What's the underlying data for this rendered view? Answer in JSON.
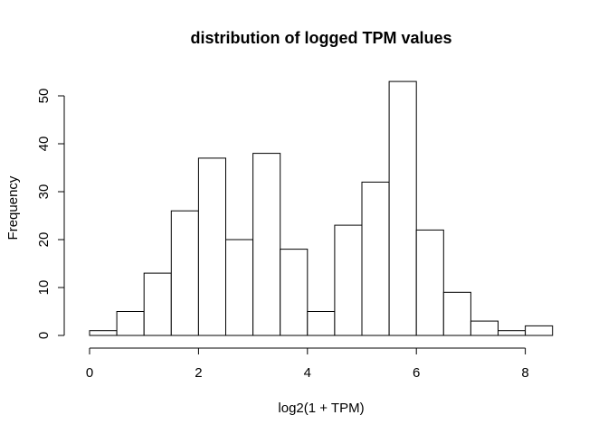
{
  "chart_data": {
    "type": "bar",
    "title": "distribution of logged TPM values",
    "xlabel": "log2(1 + TPM)",
    "ylabel": "Frequency",
    "bin_width": 0.5,
    "bins": [
      {
        "start": 0.0,
        "end": 0.5,
        "count": 1
      },
      {
        "start": 0.5,
        "end": 1.0,
        "count": 5
      },
      {
        "start": 1.0,
        "end": 1.5,
        "count": 13
      },
      {
        "start": 1.5,
        "end": 2.0,
        "count": 26
      },
      {
        "start": 2.0,
        "end": 2.5,
        "count": 37
      },
      {
        "start": 2.5,
        "end": 3.0,
        "count": 20
      },
      {
        "start": 3.0,
        "end": 3.5,
        "count": 38
      },
      {
        "start": 3.5,
        "end": 4.0,
        "count": 18
      },
      {
        "start": 4.0,
        "end": 4.5,
        "count": 5
      },
      {
        "start": 4.5,
        "end": 5.0,
        "count": 23
      },
      {
        "start": 5.0,
        "end": 5.5,
        "count": 32
      },
      {
        "start": 5.5,
        "end": 6.0,
        "count": 53
      },
      {
        "start": 6.0,
        "end": 6.5,
        "count": 22
      },
      {
        "start": 6.5,
        "end": 7.0,
        "count": 9
      },
      {
        "start": 7.0,
        "end": 7.5,
        "count": 3
      },
      {
        "start": 7.5,
        "end": 8.0,
        "count": 1
      },
      {
        "start": 8.0,
        "end": 8.5,
        "count": 2
      }
    ],
    "x_ticks": [
      "0",
      "2",
      "4",
      "6",
      "8"
    ],
    "y_ticks": [
      "0",
      "10",
      "20",
      "30",
      "40",
      "50"
    ],
    "xlim": [
      0,
      8.5
    ],
    "ylim": [
      0,
      53
    ],
    "grid": false,
    "legend": "none",
    "bar_fill": "#ffffff",
    "bar_stroke": "#000000"
  }
}
